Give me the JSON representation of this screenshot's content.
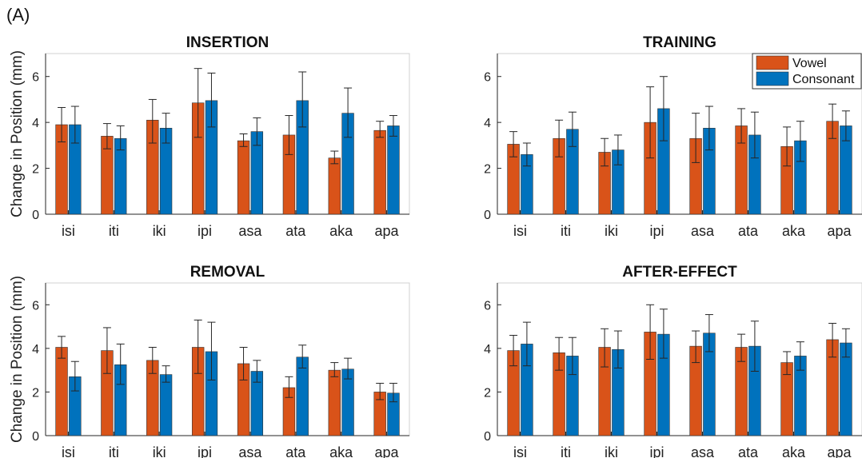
{
  "figure": {
    "panel_label": "(A)"
  },
  "colors": {
    "vowel": "#D95319",
    "consonant": "#0072BD",
    "axis": "#262626",
    "errorbar": "#262626"
  },
  "chart_data": [
    {
      "type": "bar",
      "title": "INSERTION",
      "ylabel": "Change in Position (mm)",
      "xlabel": "",
      "categories": [
        "isi",
        "iti",
        "iki",
        "ipi",
        "asa",
        "ata",
        "aka",
        "apa"
      ],
      "ylim": [
        0,
        7
      ],
      "yticks": [
        0,
        2,
        4,
        6
      ],
      "grid": false,
      "series": [
        {
          "name": "Vowel",
          "values": [
            3.9,
            3.4,
            4.1,
            4.85,
            3.2,
            3.45,
            2.45,
            3.65
          ],
          "err_low": [
            3.15,
            2.85,
            3.1,
            3.35,
            2.95,
            2.6,
            2.2,
            3.35
          ],
          "err_high": [
            4.65,
            3.95,
            5.0,
            6.35,
            3.5,
            4.3,
            2.75,
            4.05
          ]
        },
        {
          "name": "Consonant",
          "values": [
            3.9,
            3.3,
            3.75,
            4.95,
            3.6,
            4.95,
            4.4,
            3.85
          ],
          "err_low": [
            3.1,
            2.8,
            3.1,
            3.8,
            3.0,
            3.8,
            3.35,
            3.4
          ],
          "err_high": [
            4.7,
            3.85,
            4.4,
            6.15,
            4.2,
            6.2,
            5.5,
            4.3
          ]
        }
      ]
    },
    {
      "type": "bar",
      "title": "TRAINING",
      "ylabel": "",
      "xlabel": "",
      "categories": [
        "isi",
        "iti",
        "iki",
        "ipi",
        "asa",
        "ata",
        "aka",
        "apa"
      ],
      "ylim": [
        0,
        7
      ],
      "yticks": [
        0,
        2,
        4,
        6
      ],
      "grid": false,
      "legend": {
        "position": "top-right",
        "entries": [
          "Vowel",
          "Consonant"
        ]
      },
      "series": [
        {
          "name": "Vowel",
          "values": [
            3.05,
            3.3,
            2.7,
            4.0,
            3.3,
            3.85,
            2.95,
            4.05
          ],
          "err_low": [
            2.5,
            2.5,
            2.1,
            2.45,
            2.25,
            3.1,
            2.1,
            3.3
          ],
          "err_high": [
            3.6,
            4.1,
            3.3,
            5.55,
            4.4,
            4.6,
            3.8,
            4.8
          ]
        },
        {
          "name": "Consonant",
          "values": [
            2.6,
            3.7,
            2.8,
            4.6,
            3.75,
            3.45,
            3.2,
            3.85
          ],
          "err_low": [
            2.1,
            2.95,
            2.15,
            3.2,
            2.8,
            2.45,
            2.3,
            3.2
          ],
          "err_high": [
            3.1,
            4.45,
            3.45,
            6.0,
            4.7,
            4.45,
            4.05,
            4.5
          ]
        }
      ]
    },
    {
      "type": "bar",
      "title": "REMOVAL",
      "ylabel": "Change in Position (mm)",
      "xlabel": "",
      "categories": [
        "isi",
        "iti",
        "iki",
        "ipi",
        "asa",
        "ata",
        "aka",
        "apa"
      ],
      "ylim": [
        0,
        7
      ],
      "yticks": [
        0,
        2,
        4,
        6
      ],
      "grid": false,
      "series": [
        {
          "name": "Vowel",
          "values": [
            4.05,
            3.9,
            3.45,
            4.05,
            3.3,
            2.2,
            3.0,
            2.0
          ],
          "err_low": [
            3.55,
            2.85,
            2.85,
            2.85,
            2.55,
            1.75,
            2.7,
            1.65
          ],
          "err_high": [
            4.55,
            4.95,
            4.05,
            5.3,
            4.05,
            2.7,
            3.35,
            2.4
          ]
        },
        {
          "name": "Consonant",
          "values": [
            2.7,
            3.25,
            2.8,
            3.85,
            2.95,
            3.6,
            3.05,
            1.95
          ],
          "err_low": [
            2.05,
            2.35,
            2.45,
            2.55,
            2.45,
            3.1,
            2.6,
            1.55
          ],
          "err_high": [
            3.4,
            4.2,
            3.2,
            5.2,
            3.45,
            4.15,
            3.55,
            2.4
          ]
        }
      ]
    },
    {
      "type": "bar",
      "title": "AFTER-EFFECT",
      "ylabel": "",
      "xlabel": "",
      "categories": [
        "isi",
        "iti",
        "iki",
        "ipi",
        "asa",
        "ata",
        "aka",
        "apa"
      ],
      "ylim": [
        0,
        7
      ],
      "yticks": [
        0,
        2,
        4,
        6
      ],
      "grid": false,
      "series": [
        {
          "name": "Vowel",
          "values": [
            3.9,
            3.8,
            4.05,
            4.75,
            4.1,
            4.05,
            3.35,
            4.4
          ],
          "err_low": [
            3.2,
            3.0,
            3.15,
            3.5,
            3.35,
            3.4,
            2.8,
            3.6
          ],
          "err_high": [
            4.6,
            4.5,
            4.9,
            6.0,
            4.8,
            4.65,
            3.85,
            5.15
          ]
        },
        {
          "name": "Consonant",
          "values": [
            4.2,
            3.65,
            3.95,
            4.65,
            4.7,
            4.1,
            3.65,
            4.25
          ],
          "err_low": [
            3.2,
            2.8,
            3.1,
            3.55,
            3.85,
            2.95,
            3.0,
            3.6
          ],
          "err_high": [
            5.2,
            4.5,
            4.8,
            5.8,
            5.55,
            5.25,
            4.3,
            4.9
          ]
        }
      ]
    }
  ]
}
